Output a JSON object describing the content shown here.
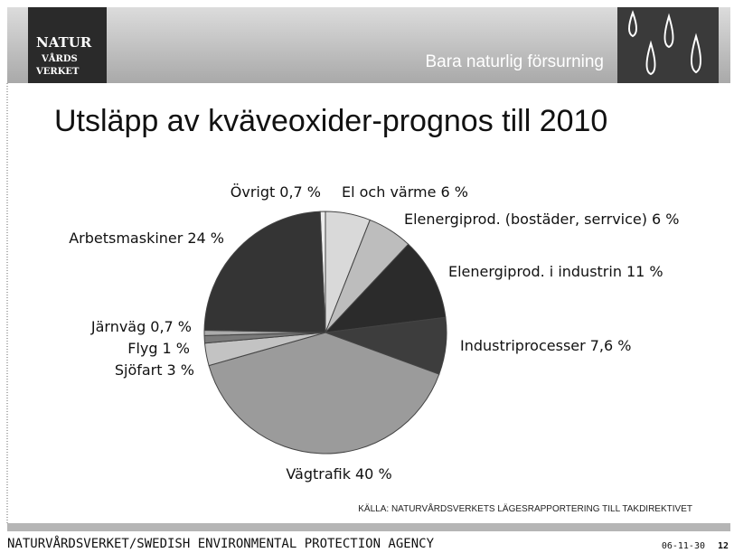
{
  "header": {
    "logo": [
      "NATUR",
      "VÅRDS",
      "VERKET"
    ],
    "subtitle": "Bara naturlig försurning"
  },
  "chart_data": {
    "type": "pie",
    "title": "Utsläpp av kväveoxider-prognos till 2010",
    "categories": [
      "Övrigt",
      "El och värme",
      "Elenergiprod. (bostäder, serrvice)",
      "Elenergiprod. i industrin",
      "Industriprocesser",
      "Vägtrafik",
      "Sjöfart",
      "Flyg",
      "Järnväg",
      "Arbetsmaskiner"
    ],
    "values": [
      0.7,
      6,
      6,
      11,
      7.6,
      40,
      3,
      1,
      0.7,
      24
    ],
    "value_labels": [
      "0,7 %",
      "6 %",
      "6 %",
      "11 %",
      "7,6 %",
      "40 %",
      "3 %",
      "1 %",
      "0,7 %",
      "24 %"
    ],
    "colors": [
      "#ececec",
      "#d9d9d9",
      "#bdbdbd",
      "#2b2b2b",
      "#3d3d3d",
      "#9b9b9b",
      "#c3c3c3",
      "#7a7a7a",
      "#ababab",
      "#343434"
    ],
    "source": "KÄLLA: NATURVÅRDSVERKETS LÄGESRAPPORTERING TILL TAKDIREKTIVET"
  },
  "footer": {
    "agency": "NATURVÅRDSVERKET/SWEDISH ENVIRONMENTAL PROTECTION AGENCY",
    "date": "06-11-30",
    "page": "12"
  }
}
